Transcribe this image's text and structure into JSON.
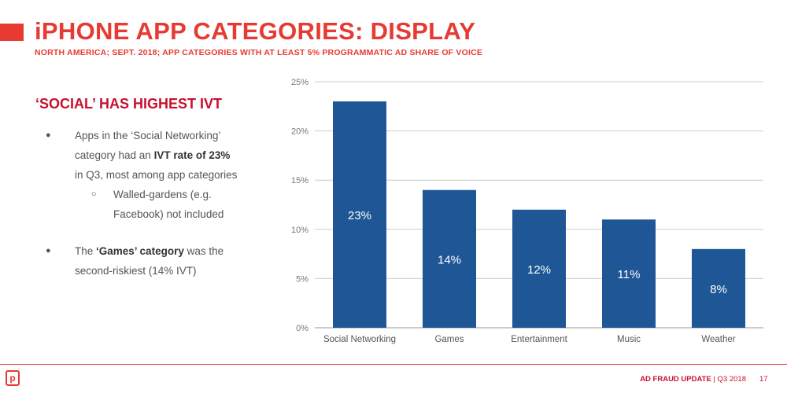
{
  "title": "iPHONE APP CATEGORIES: DISPLAY",
  "subtitle": "NORTH AMERICA; SEPT. 2018; APP CATEGORIES WITH AT LEAST 5% PROGRAMMATIC AD SHARE OF VOICE",
  "heading": "‘SOCIAL’ HAS HIGHEST IVT",
  "bullets": {
    "b1_l1": "Apps in the ‘Social Networking’",
    "b1_l2_pre": "category had an ",
    "b1_l2_bold": "IVT rate of 23%",
    "b1_l3": "in Q3, most among app categories",
    "sub1_l1": "Walled-gardens (e.g.",
    "sub1_l2": "Facebook) not included",
    "b2_l1_pre": "The ",
    "b2_l1_bold": "‘Games’ category",
    "b2_l1_post": " was the",
    "b2_l2": "second-riskiest (14% IVT)",
    "bullet_glyph": "●",
    "sub_glyph": "○"
  },
  "footer": {
    "logo": "p",
    "label_bold": "AD FRAUD UPDATE",
    "label_rest": " | Q3 2018",
    "page": "17"
  },
  "colors": {
    "accent": "#e63a32",
    "bar": "#1f5796",
    "heading": "#c8102e"
  },
  "chart_data": {
    "type": "bar",
    "categories": [
      "Social Networking",
      "Games",
      "Entertainment",
      "Music",
      "Weather"
    ],
    "values": [
      23,
      14,
      12,
      11,
      8
    ],
    "data_labels": [
      "23%",
      "14%",
      "12%",
      "11%",
      "8%"
    ],
    "yticks": [
      "0%",
      "5%",
      "10%",
      "15%",
      "20%",
      "25%"
    ],
    "ylim": [
      0,
      25
    ],
    "grid": true
  }
}
